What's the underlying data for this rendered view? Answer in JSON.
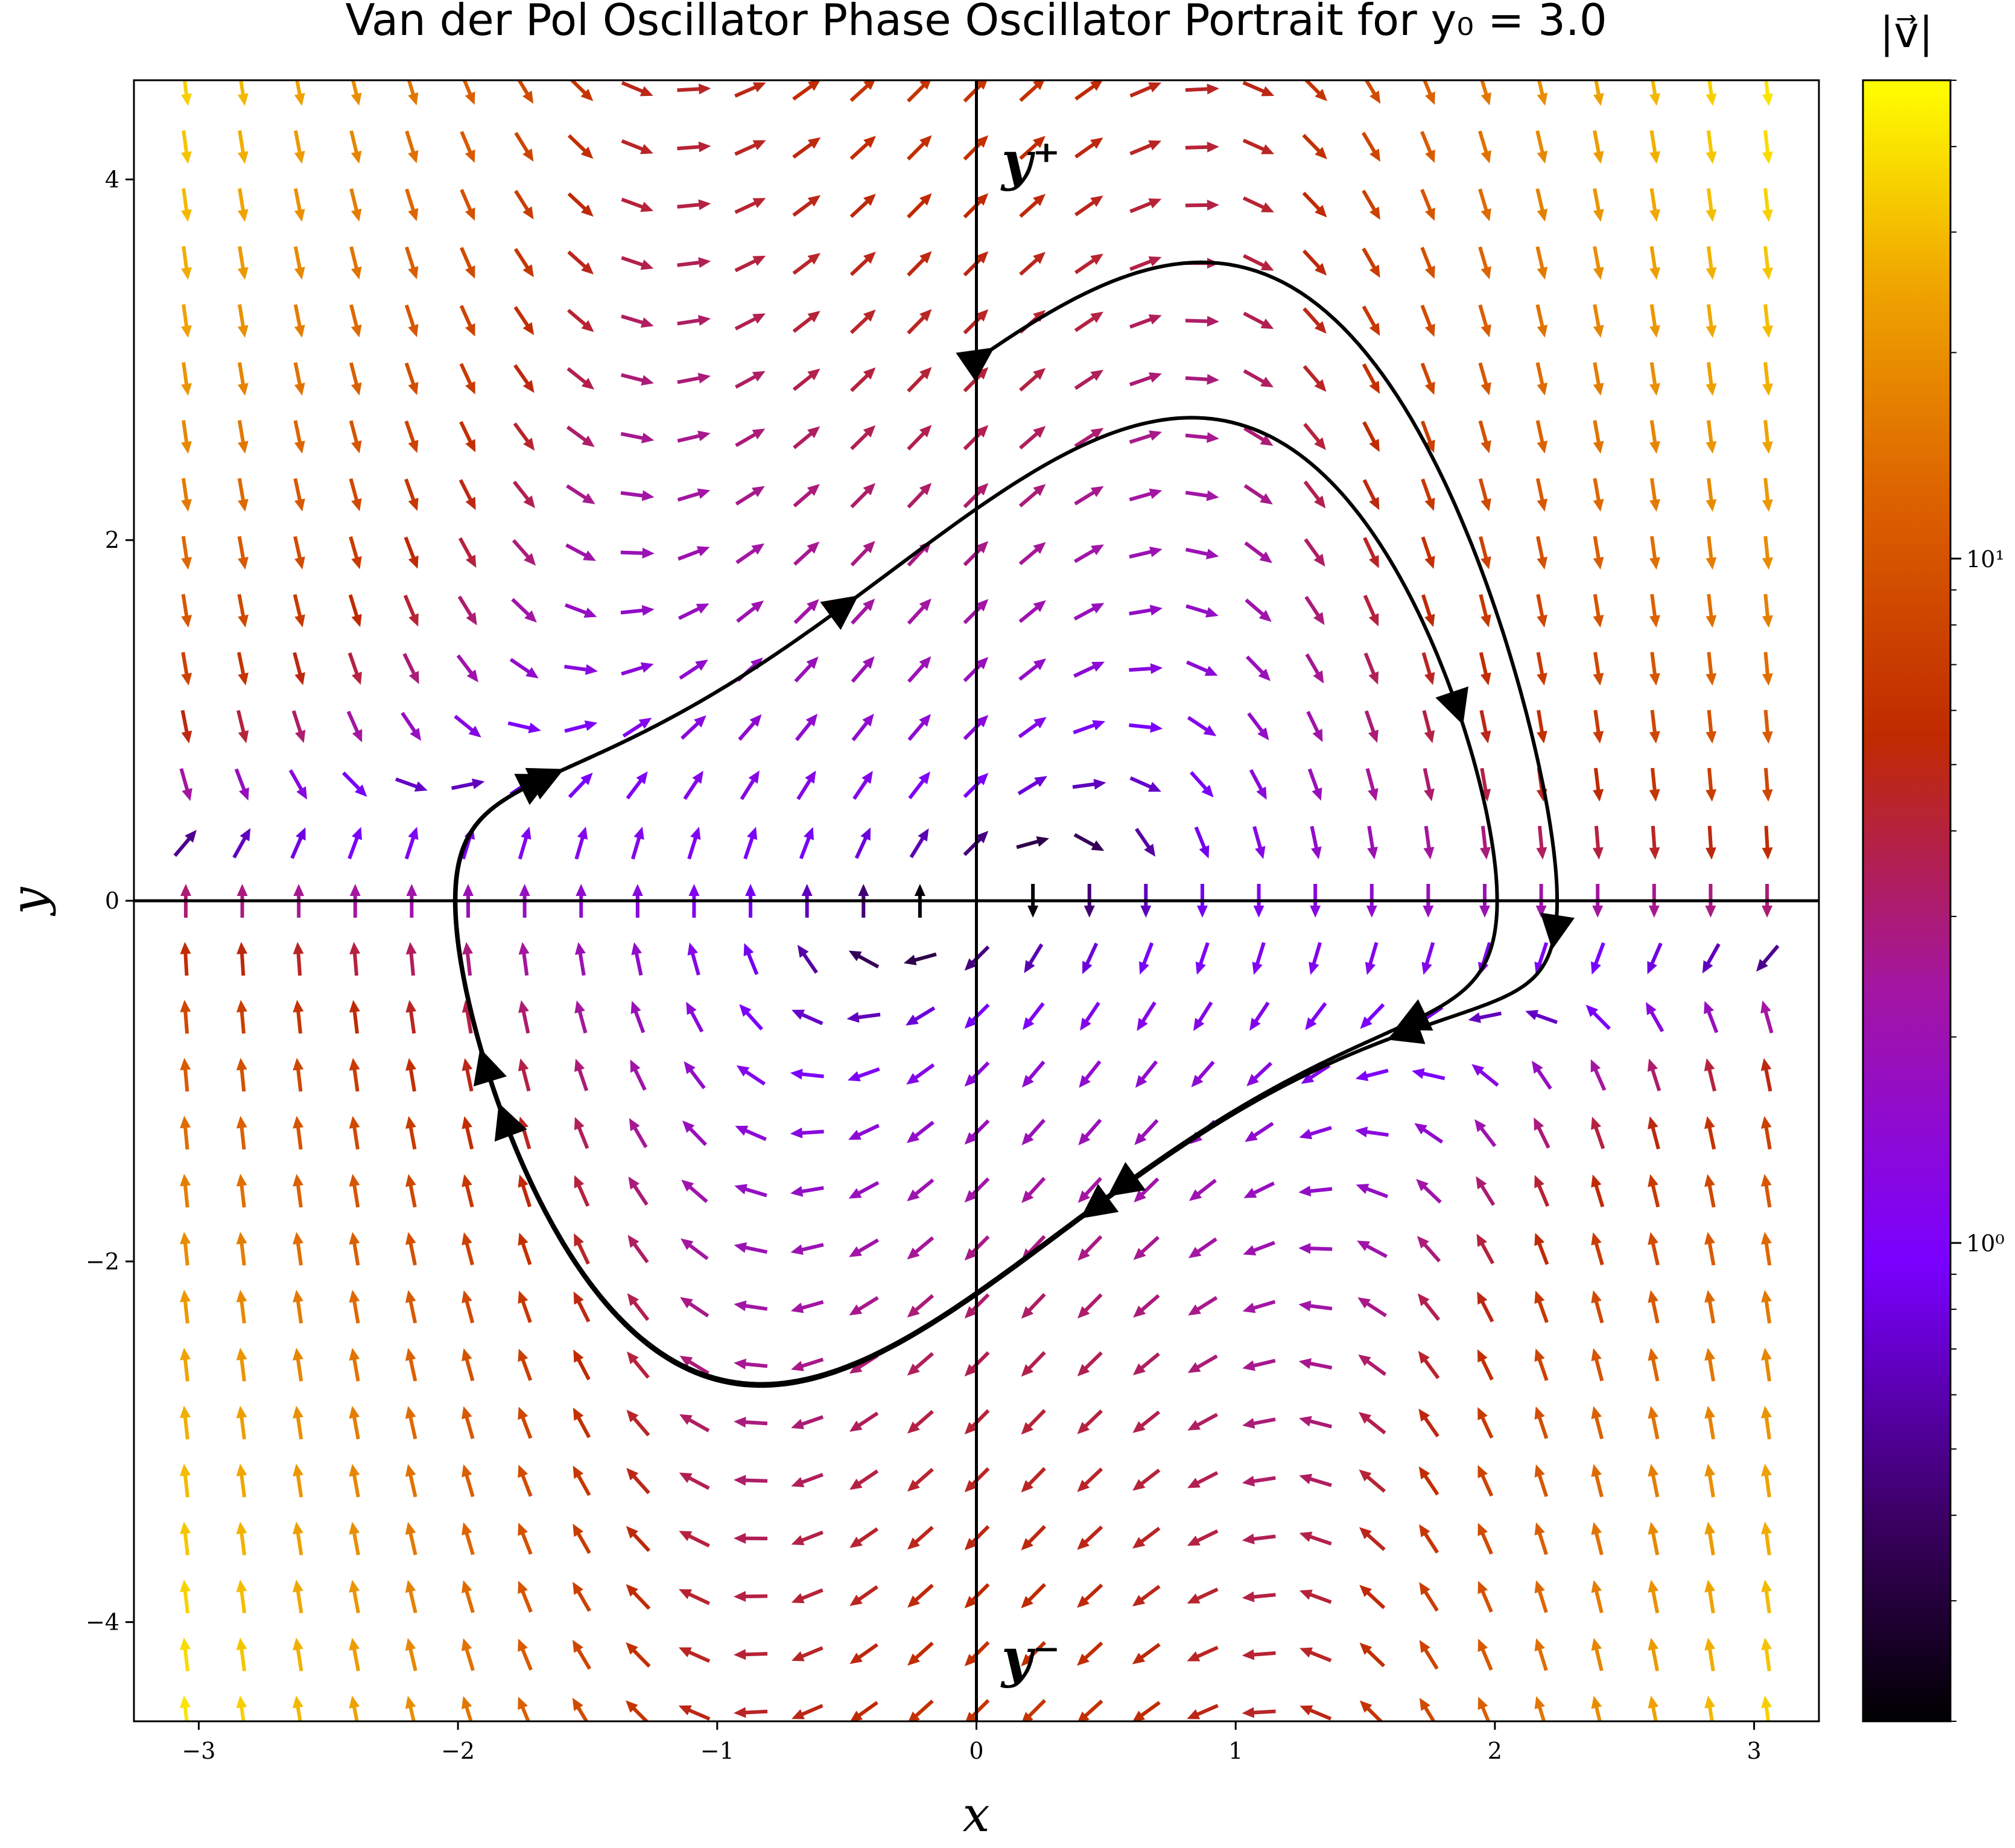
{
  "chart_data": {
    "type": "quiver",
    "title": "Van der Pol Oscillator Phase Oscillator Portrait for y₀ = 3.0",
    "xlabel": "x",
    "ylabel": "y",
    "xlim": [
      -3.25,
      3.25
    ],
    "ylim": [
      -4.55,
      4.55
    ],
    "xticks": [
      {
        "value": -3,
        "label": "−3"
      },
      {
        "value": -2,
        "label": "−2"
      },
      {
        "value": -1,
        "label": "−1"
      },
      {
        "value": 0,
        "label": "0"
      },
      {
        "value": 1,
        "label": "1"
      },
      {
        "value": 2,
        "label": "2"
      },
      {
        "value": 3,
        "label": "3"
      }
    ],
    "yticks": [
      {
        "value": -4,
        "label": "−4"
      },
      {
        "value": -2,
        "label": "−2"
      },
      {
        "value": 0,
        "label": "0"
      },
      {
        "value": 2,
        "label": "2"
      },
      {
        "value": 4,
        "label": "4"
      }
    ],
    "mu": 1.0,
    "initial_condition": {
      "x": 0.0,
      "y": 3.0
    },
    "vector_field": {
      "x_range": [
        -3.05,
        3.05
      ],
      "y_range": [
        -4.5,
        4.5
      ],
      "nx": 29,
      "ny": 29,
      "color_scale": "log",
      "colormap": "gnuplot"
    },
    "colorbar": {
      "label": "|v⃗|",
      "scale": "log",
      "range": [
        0.2,
        50
      ],
      "ticks": [
        {
          "value": 1,
          "label": "10⁰"
        },
        {
          "value": 10,
          "label": "10¹"
        }
      ]
    },
    "annotations": [
      {
        "text": "y⁺",
        "x": 0.05,
        "y": 4.1
      },
      {
        "text": "y⁻",
        "x": 0.05,
        "y": -4.2
      }
    ],
    "grid": false,
    "reference_lines": [
      "x=0",
      "y=0"
    ]
  },
  "colors": {
    "trajectory": "#000000",
    "axes": "#000000",
    "background": "#ffffff"
  }
}
